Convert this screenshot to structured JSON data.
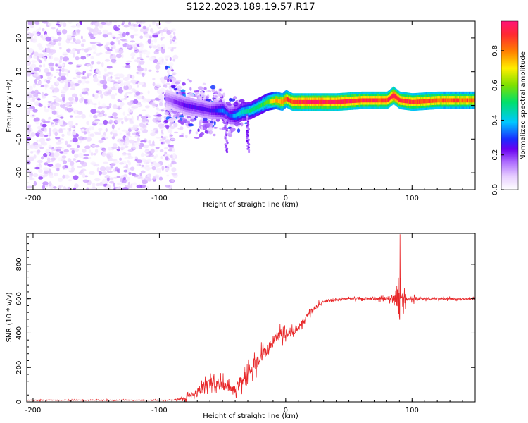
{
  "figure_title": "S122.2023.189.19.57.R17",
  "colors": {
    "snr_line": "#e8282a",
    "frame": "#000000",
    "colormap": [
      "#ffffff",
      "#e6ccff",
      "#b070ff",
      "#6a00f0",
      "#1a2cff",
      "#00c8ff",
      "#00e06a",
      "#7ee000",
      "#ffee00",
      "#ff8000",
      "#ff2a30",
      "#ff1478"
    ]
  },
  "chart_data": [
    {
      "type": "heatmap",
      "title": "",
      "xlabel": "Height of straight line (km)",
      "ylabel": "Frequency (Hz)",
      "xlim": [
        -205,
        150
      ],
      "ylim": [
        -25,
        25
      ],
      "xticks": [
        -200,
        -100,
        0,
        100
      ],
      "yticks": [
        -20,
        -10,
        0,
        10,
        20
      ],
      "colorbar": {
        "label": "Normalized spectral amplitude",
        "range": [
          0.0,
          0.97
        ],
        "ticks": [
          0.0,
          0.2,
          0.4,
          0.6,
          0.8
        ]
      },
      "ridge": {
        "description": "dominant frequency track",
        "x": [
          -95,
          -80,
          -60,
          -50,
          -45,
          -40,
          -35,
          -28,
          -20,
          -15,
          -8,
          -3,
          0,
          5,
          20,
          40,
          60,
          80,
          85,
          90,
          100,
          120,
          150
        ],
        "freq": [
          2.0,
          0.0,
          -1.5,
          -1.5,
          -3.0,
          -3.0,
          -2.0,
          -1.5,
          0.0,
          1.0,
          1.5,
          1.0,
          2.0,
          1.0,
          1.0,
          1.0,
          1.5,
          1.5,
          3.0,
          1.5,
          1.0,
          1.5,
          1.5
        ],
        "amplitude": [
          0.15,
          0.25,
          0.25,
          0.35,
          0.3,
          0.4,
          0.45,
          0.5,
          0.55,
          0.6,
          0.75,
          0.8,
          0.85,
          0.9,
          0.95,
          0.95,
          0.92,
          0.92,
          0.97,
          0.92,
          0.9,
          0.88,
          0.85
        ]
      },
      "noise_region": {
        "x_from": -205,
        "x_to": -95,
        "amplitude_max": 0.2
      },
      "scatter_region": {
        "x_from": -95,
        "x_to": -30,
        "freq_spread": 12,
        "amplitude_max": 0.25
      }
    },
    {
      "type": "line",
      "title": "",
      "xlabel": "Height of straight line (km)",
      "ylabel": "SNR (10 * v/v)",
      "xlim": [
        -205,
        150
      ],
      "ylim": [
        0,
        980
      ],
      "xticks": [
        -200,
        -100,
        0,
        100
      ],
      "yticks": [
        0,
        200,
        400,
        600,
        800
      ],
      "series": [
        {
          "name": "SNR",
          "envelope_x": [
            -205,
            -90,
            -80,
            -70,
            -60,
            -55,
            -50,
            -45,
            -40,
            -35,
            -30,
            -25,
            -20,
            -15,
            -10,
            -5,
            0,
            5,
            10,
            15,
            20,
            25,
            30,
            35,
            40,
            45,
            50,
            60,
            70,
            80,
            85,
            88,
            90,
            92,
            95,
            100,
            110,
            120,
            130,
            140,
            150
          ],
          "envelope_y": [
            10,
            10,
            20,
            60,
            110,
            110,
            100,
            80,
            70,
            120,
            170,
            220,
            260,
            300,
            350,
            390,
            400,
            410,
            430,
            480,
            520,
            560,
            580,
            590,
            595,
            598,
            600,
            600,
            600,
            600,
            605,
            610,
            600,
            595,
            600,
            600,
            600,
            600,
            600,
            600,
            600
          ],
          "noise_amplitude_x": [
            -205,
            -90,
            -80,
            -70,
            -55,
            -45,
            -35,
            -25,
            -15,
            -5,
            5,
            15,
            25,
            35,
            50,
            80,
            86,
            89,
            91,
            93,
            96,
            110,
            150
          ],
          "noise_amplitude": [
            5,
            5,
            20,
            60,
            80,
            60,
            80,
            100,
            90,
            80,
            60,
            50,
            30,
            20,
            15,
            25,
            60,
            300,
            330,
            100,
            40,
            15,
            12
          ],
          "peak": {
            "x": 90.5,
            "y": 975
          }
        }
      ]
    }
  ]
}
